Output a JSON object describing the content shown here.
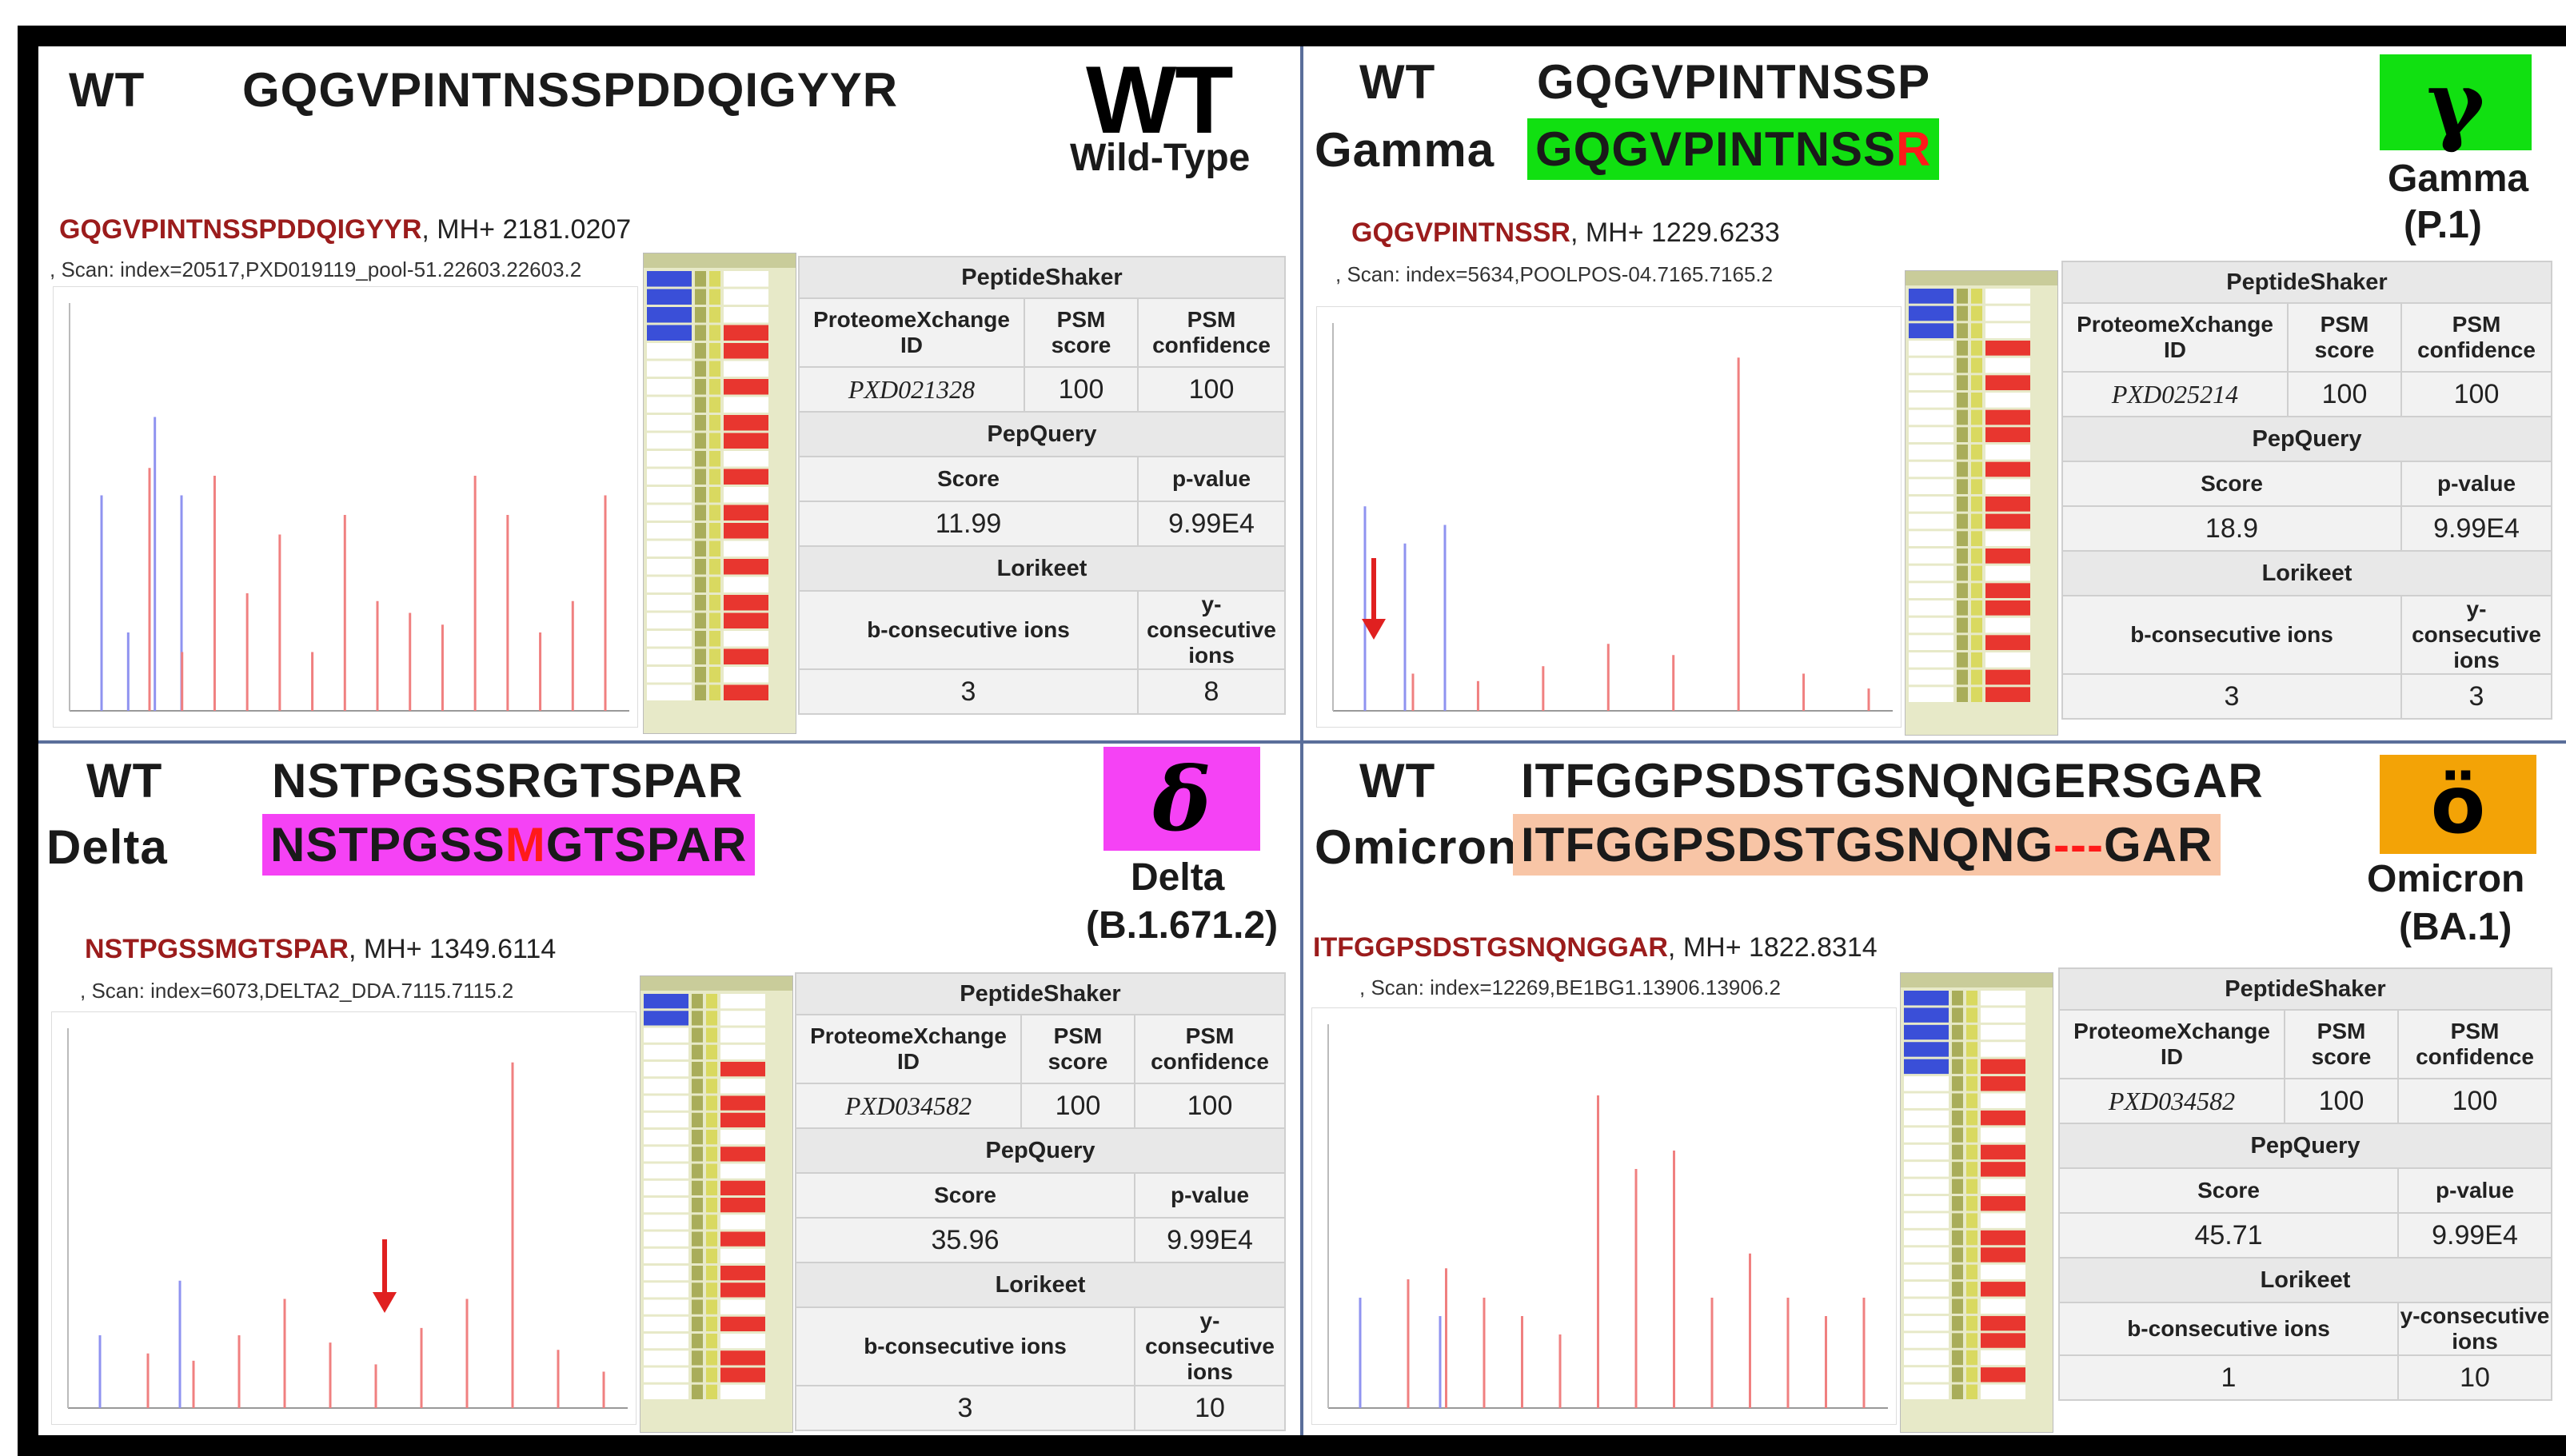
{
  "colors": {
    "gamma": "#11e011",
    "delta": "#f542f5",
    "omicron": "#f3a306",
    "omicron_seq_bg": "#f8c5a6",
    "peptide_red": "#9b1c1c"
  },
  "panels": {
    "wt": {
      "label": "WT",
      "sequence": "GQGVPINTNSSPDDQIGYYR",
      "logo": "WT",
      "logo_sub": "Wild-Type",
      "peptide": "GQGVPINTNSSPDDQIGYYR",
      "mh": ", MH+ 2181.0207",
      "scan": ", Scan: index=20517,PXD019119_pool-51.22603.22603.2",
      "table": {
        "ps_title": "PeptideShaker",
        "col1": "ProteomeXchange ID",
        "col2": "PSM score",
        "col3": "PSM confidence",
        "pxd": "PXD021328",
        "psm_score": "100",
        "psm_conf": "100",
        "pq_title": "PepQuery",
        "score_h": "Score",
        "p_h": "p-value",
        "score": "11.99",
        "pval": "9.99E4",
        "lk_title": "Lorikeet",
        "b_h": "b-consecutive ions",
        "y_h": "y-consecutive ions",
        "b": "3",
        "y": "8"
      },
      "spectrum": {
        "blue": [
          0.55,
          0.2,
          0.75,
          0.55
        ],
        "red": [
          0.62,
          0.15,
          0.6,
          0.3,
          0.45,
          0.15,
          0.5,
          0.28,
          0.25,
          0.22,
          0.6,
          0.5,
          0.2,
          0.28,
          0.55
        ]
      }
    },
    "gamma": {
      "wt_label": "WT",
      "variant_label": "Gamma",
      "wt_seq": "GQGVPINTNSSP",
      "var_seq_prefix": "GQGVPINTNSS",
      "var_seq_mut": "R",
      "badge": "γ",
      "sub1": "Gamma",
      "sub2": "(P.1)",
      "peptide": "GQGVPINTNSSR",
      "mh": ", MH+ 1229.6233",
      "scan": ", Scan: index=5634,POOLPOS-04.7165.7165.2",
      "table": {
        "ps_title": "PeptideShaker",
        "col1": "ProteomeXchange ID",
        "col2": "PSM score",
        "col3": "PSM confidence",
        "pxd": "PXD025214",
        "psm_score": "100",
        "psm_conf": "100",
        "pq_title": "PepQuery",
        "score_h": "Score",
        "p_h": "p-value",
        "score": "18.9",
        "pval": "9.99E4",
        "lk_title": "Lorikeet",
        "b_h": "b-consecutive ions",
        "y_h": "y-consecutive ions",
        "b": "3",
        "y": "3"
      },
      "spectrum": {
        "blue": [
          0.55,
          0.45,
          0.5
        ],
        "red": [
          0.1,
          0.08,
          0.12,
          0.18,
          0.15,
          0.95,
          0.1,
          0.06
        ]
      }
    },
    "delta": {
      "wt_label": "WT",
      "variant_label": "Delta",
      "wt_seq": "NSTPGSSRGTSPAR",
      "var_seq_prefix": "NSTPGSS",
      "var_seq_mut": "M",
      "var_seq_suffix": "GTSPAR",
      "badge": "δ",
      "sub1": "Delta",
      "sub2": "(B.1.671.2)",
      "peptide": "NSTPGSSMGTSPAR",
      "mh": ", MH+ 1349.6114",
      "scan": ", Scan: index=6073,DELTA2_DDA.7115.7115.2",
      "table": {
        "ps_title": "PeptideShaker",
        "col1": "ProteomeXchange ID",
        "col2": "PSM score",
        "col3": "PSM confidence",
        "pxd": "PXD034582",
        "psm_score": "100",
        "psm_conf": "100",
        "pq_title": "PepQuery",
        "score_h": "Score",
        "p_h": "p-value",
        "score": "35.96",
        "pval": "9.99E4",
        "lk_title": "Lorikeet",
        "b_h": "b-consecutive ions",
        "y_h": "y-consecutive ions",
        "b": "3",
        "y": "10"
      },
      "spectrum": {
        "blue": [
          0.2,
          0.35
        ],
        "red": [
          0.15,
          0.13,
          0.2,
          0.3,
          0.18,
          0.12,
          0.22,
          0.3,
          0.95,
          0.16,
          0.1
        ]
      }
    },
    "omicron": {
      "wt_label": "WT",
      "variant_label": "Omicron",
      "wt_seq": "ITFGGPSDSTGSNQNGERSGAR",
      "var_seq_prefix": "ITFGGPSDSTGSNQNG",
      "var_seq_mut": "---",
      "var_seq_suffix": "GAR",
      "badge": "ö",
      "sub1": "Omicron",
      "sub2": "(BA.1)",
      "peptide": "ITFGGPSDSTGSNQNGGAR",
      "mh": ", MH+ 1822.8314",
      "scan": ", Scan: index=12269,BE1BG1.13906.13906.2",
      "table": {
        "ps_title": "PeptideShaker",
        "col1": "ProteomeXchange ID",
        "col2": "PSM score",
        "col3": "PSM confidence",
        "pxd": "PXD034582",
        "psm_score": "100",
        "psm_conf": "100",
        "pq_title": "PepQuery",
        "score_h": "Score",
        "p_h": "p-value",
        "score": "45.71",
        "pval": "9.99E4",
        "lk_title": "Lorikeet",
        "b_h": "b-consecutive ions",
        "y_h": "y-consecutive ions",
        "b": "1",
        "y": "10"
      },
      "spectrum": {
        "blue": [
          0.3,
          0.25
        ],
        "red": [
          0.35,
          0.38,
          0.3,
          0.25,
          0.2,
          0.85,
          0.65,
          0.7,
          0.3,
          0.42,
          0.3,
          0.25,
          0.3
        ]
      }
    }
  }
}
